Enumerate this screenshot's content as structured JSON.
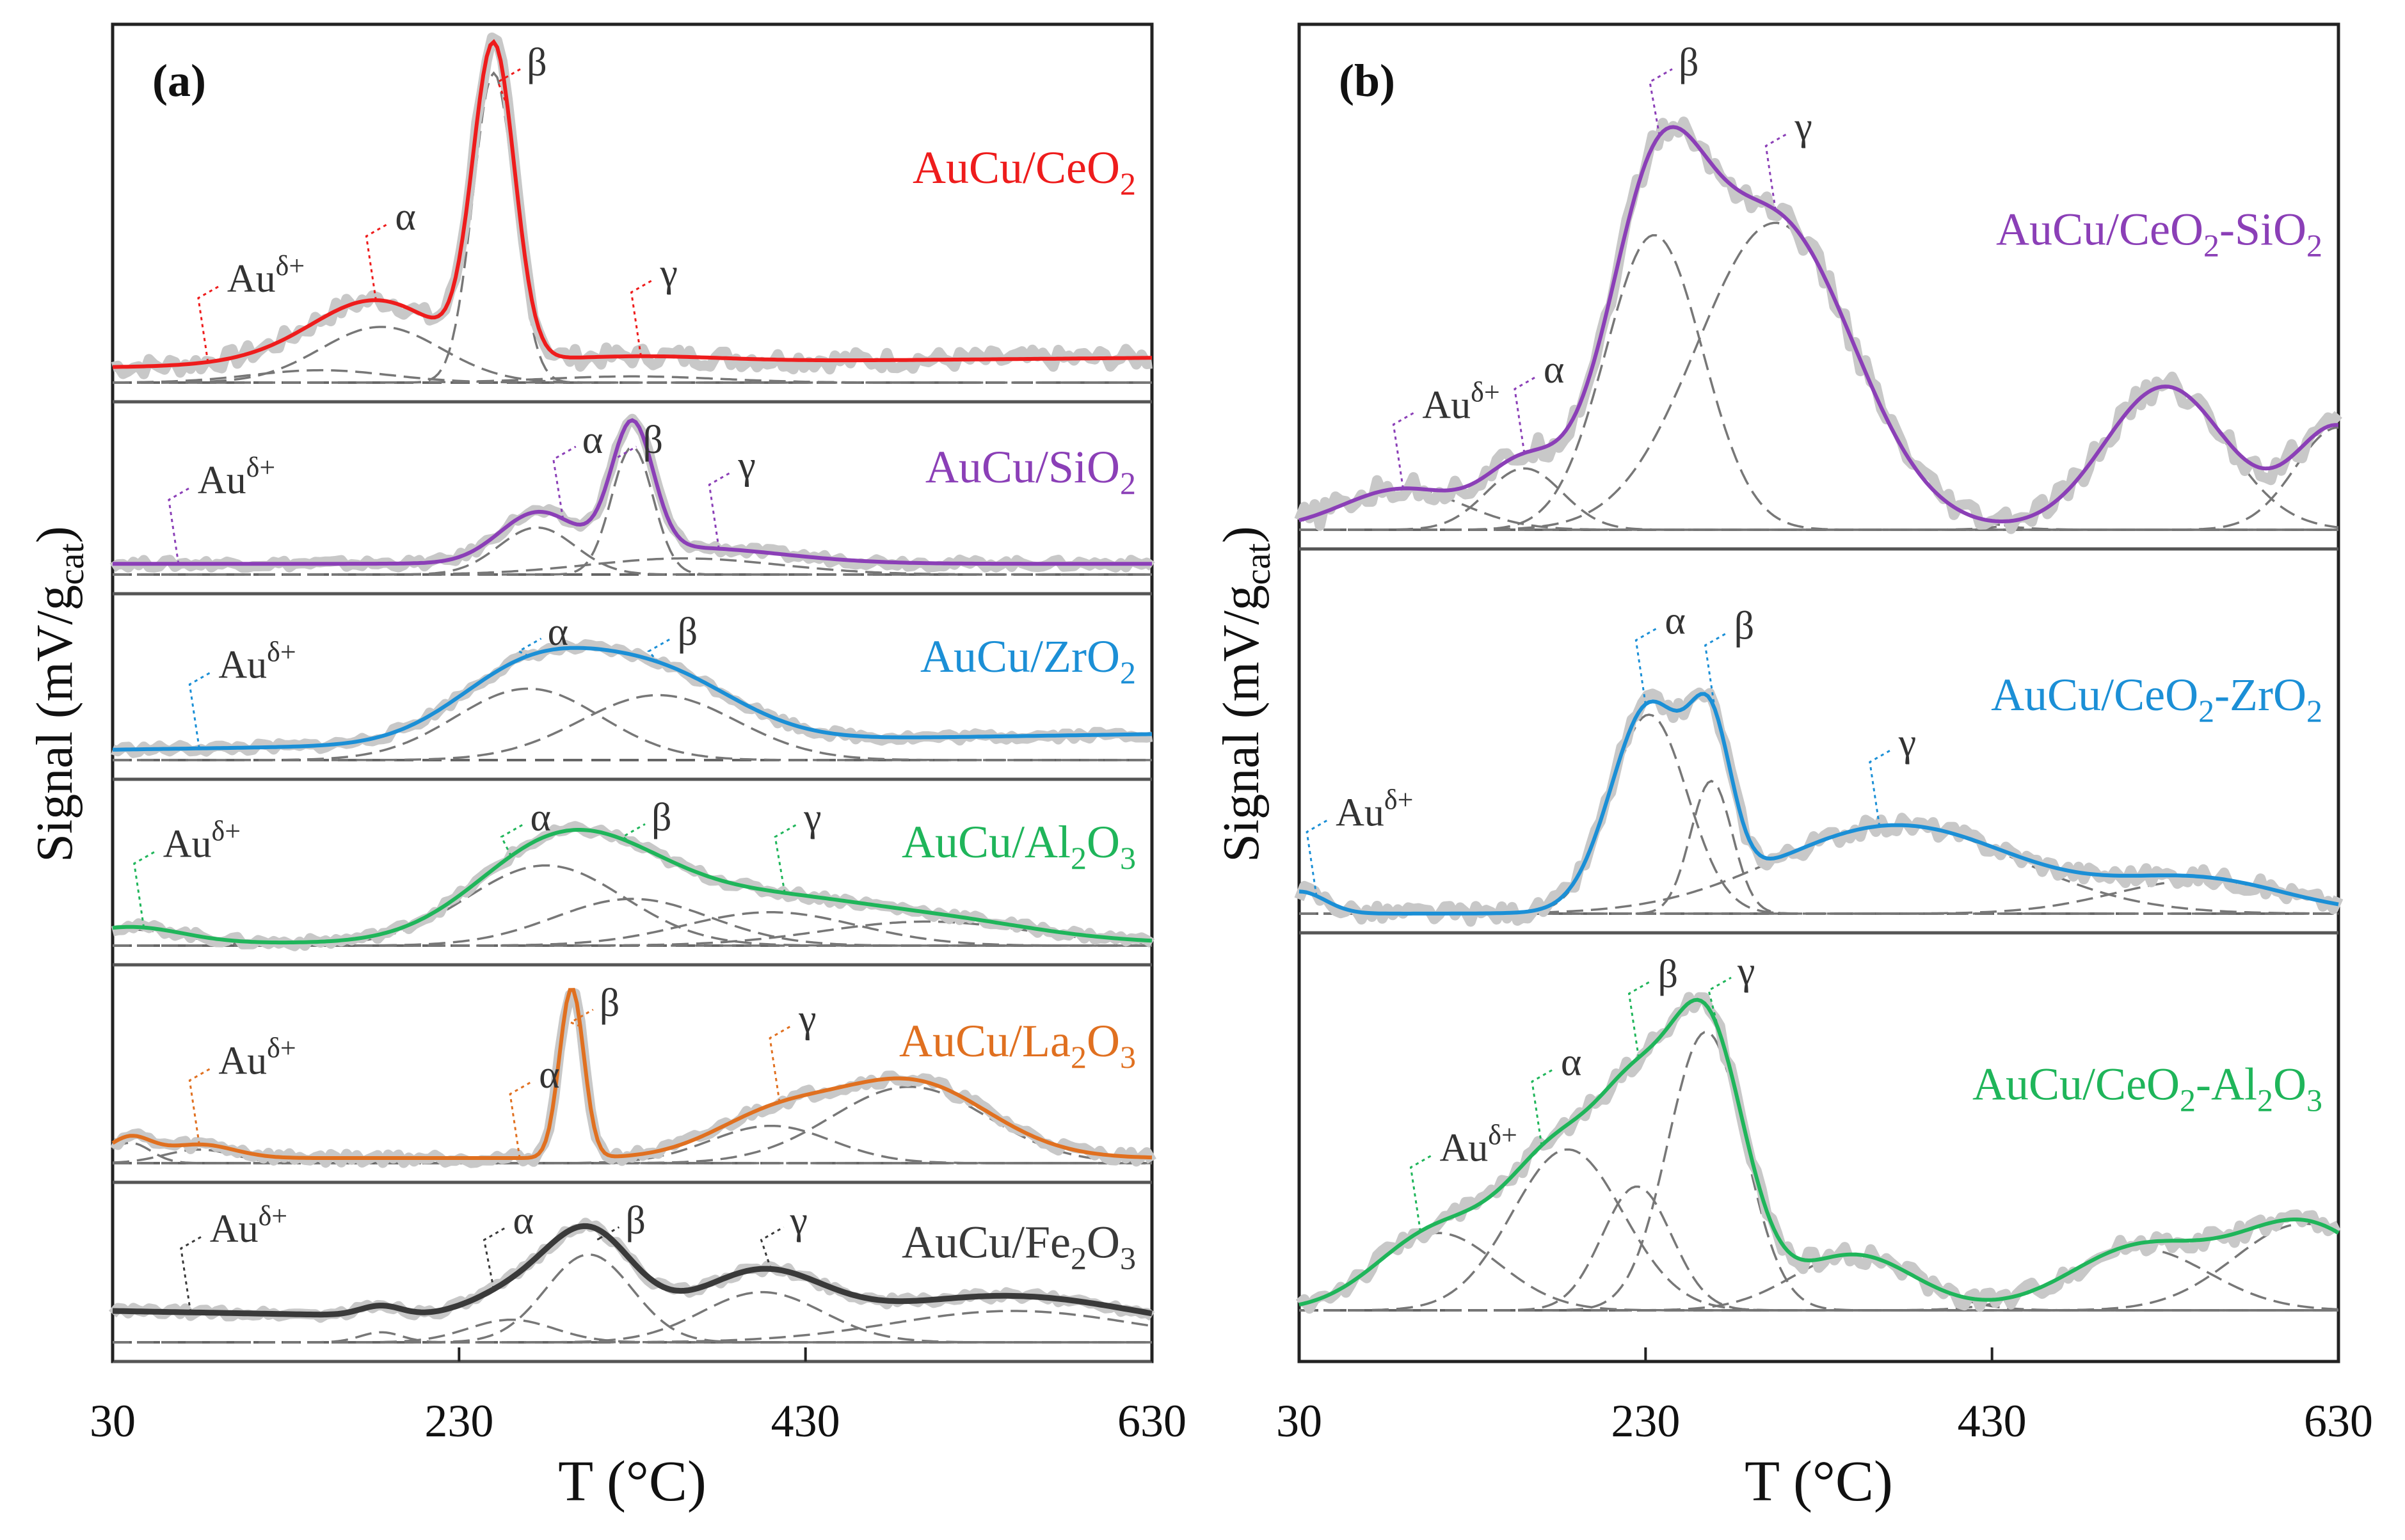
{
  "figure": {
    "y_axis_label": "Signal (mV/g",
    "y_axis_label_sub": "cat",
    "y_axis_label_close": ")"
  },
  "chart_data": [
    {
      "type": "line",
      "panel_label": "(a)",
      "xlabel": "T (°C)",
      "ylabel": "Signal (mV/gcat)",
      "xlim": [
        30,
        630
      ],
      "x_ticks": [
        "30",
        "230",
        "430",
        "630"
      ],
      "series": [
        {
          "name": "AuCu/CeO2",
          "label_main": "AuCu/CeO",
          "label_sub": "2",
          "label_tail": "",
          "color": "#ee1c1c",
          "fit": {
            "base": 0.05,
            "slope": 0.03,
            "peaks": [
              [
                150,
                0.04,
                40
              ],
              [
                185,
                0.18,
                35
              ],
              [
                250,
                1.0,
                12
              ],
              [
                330,
                0.02,
                50
              ]
            ]
          },
          "annotations": [
            [
              "Au",
              "δ+",
              85,
              0.06
            ],
            [
              "α",
              "",
              182,
              0.12
            ],
            [
              "β",
              "",
              258,
              0.8
            ],
            [
              "γ",
              "",
              335,
              0.06
            ]
          ]
        },
        {
          "name": "AuCu/SiO2",
          "label_main": "AuCu/SiO",
          "label_sub": "2",
          "label_tail": "",
          "color": "#8b3fb7",
          "fit": {
            "base": 0.08,
            "slope": 0.0,
            "peaks": [
              [
                275,
                0.35,
                22
              ],
              [
                330,
                0.95,
                12
              ],
              [
                360,
                0.12,
                55
              ]
            ]
          },
          "annotations": [
            [
              "Au",
              "δ+",
              68,
              0.08
            ],
            [
              "α",
              "",
              290,
              0.35
            ],
            [
              "β",
              "",
              325,
              0.8
            ],
            [
              "γ",
              "",
              380,
              0.12
            ]
          ]
        },
        {
          "name": "AuCu/ZrO2",
          "label_main": "AuCu/ZrO",
          "label_sub": "2",
          "label_tail": "",
          "color": "#1b8fd6",
          "fit": {
            "base": 0.08,
            "slope": 0.12,
            "peaks": [
              [
                270,
                0.55,
                42
              ],
              [
                345,
                0.5,
                45
              ]
            ]
          },
          "annotations": [
            [
              "Au",
              "δ+",
              80,
              0.08
            ],
            [
              "α",
              "",
              270,
              0.5
            ],
            [
              "β",
              "",
              345,
              0.45
            ]
          ]
        },
        {
          "name": "AuCu/Al2O3",
          "label_main": "AuCu/Al",
          "label_sub": "2",
          "label_tail": "O",
          "label_sub2": "3",
          "color": "#1fb55a",
          "fit": {
            "base": 0.02,
            "slope": 0.0,
            "peaks": [
              [
                40,
                0.12,
                30
              ],
              [
                280,
                0.6,
                45
              ],
              [
                330,
                0.35,
                45
              ],
              [
                410,
                0.25,
                50
              ],
              [
                500,
                0.18,
                60
              ]
            ]
          },
          "annotations": [
            [
              "Au",
              "δ+",
              48,
              0.1
            ],
            [
              "α",
              "",
              260,
              0.2
            ],
            [
              "β",
              "",
              330,
              0.75
            ],
            [
              "γ",
              "",
              418,
              0.3
            ]
          ]
        },
        {
          "name": "AuCu/La2O3",
          "label_main": "AuCu/La",
          "label_sub": "2",
          "label_tail": "O",
          "label_sub2": "3",
          "color": "#e07020",
          "fit": {
            "base": 0.03,
            "slope": 0.0,
            "peaks": [
              [
                40,
                0.12,
                12
              ],
              [
                80,
                0.08,
                20
              ],
              [
                295,
                1.0,
                7
              ],
              [
                410,
                0.22,
                35
              ],
              [
                490,
                0.45,
                45
              ]
            ]
          },
          "annotations": [
            [
              "Au",
              "δ+",
              80,
              0.12
            ],
            [
              "α",
              "",
              265,
              0.08
            ],
            [
              "β",
              "",
              300,
              0.8
            ],
            [
              "γ",
              "",
              415,
              0.22
            ]
          ]
        },
        {
          "name": "AuCu/Fe2O3",
          "label_main": "AuCu/Fe",
          "label_sub": "2",
          "label_tail": "O",
          "label_sub2": "3",
          "color": "#3a3a3a",
          "fit": {
            "base": 0.25,
            "slope": -0.15,
            "peaks": [
              [
                185,
                0.08,
                12
              ],
              [
                260,
                0.18,
                25
              ],
              [
                305,
                0.7,
                25
              ],
              [
                405,
                0.4,
                35
              ],
              [
                550,
                0.25,
                70
              ]
            ]
          },
          "annotations": [
            [
              "Au",
              "δ+",
              75,
              0.3
            ],
            [
              "α",
              "",
              250,
              0.4
            ],
            [
              "β",
              "",
              315,
              0.8
            ],
            [
              "γ",
              "",
              410,
              0.45
            ]
          ]
        }
      ]
    },
    {
      "type": "line",
      "panel_label": "(b)",
      "xlabel": "T (°C)",
      "ylabel": "Signal (mV/gcat)",
      "xlim": [
        30,
        630
      ],
      "x_ticks": [
        "30",
        "230",
        "430",
        "630"
      ],
      "series": [
        {
          "name": "AuCu/CeO2-SiO2",
          "label_main": "AuCu/CeO",
          "label_sub": "2",
          "label_tail": "-SiO",
          "label_sub2": "2",
          "color": "#8b3fb7",
          "fit": {
            "base": 0.0,
            "slope": 0.0,
            "peaks": [
              [
                90,
                0.1,
                35
              ],
              [
                160,
                0.15,
                22
              ],
              [
                235,
                0.72,
                28
              ],
              [
                305,
                0.75,
                45
              ],
              [
                530,
                0.35,
                35
              ],
              [
                630,
                0.25,
                25
              ]
            ]
          },
          "annotations": [
            [
              "Au",
              "δ+",
              90,
              0.12
            ],
            [
              "α",
              "",
              160,
              0.15
            ],
            [
              "β",
              "",
              238,
              0.6
            ],
            [
              "γ",
              "",
              305,
              0.7
            ]
          ]
        },
        {
          "name": "AuCu/CeO2-ZrO2",
          "label_main": "AuCu/CeO",
          "label_sub": "2",
          "label_tail": "-ZrO",
          "label_sub2": "2",
          "color": "#1b8fd6",
          "fit": {
            "base": 0.0,
            "slope": 0.0,
            "peaks": [
              [
                30,
                0.08,
                15
              ],
              [
                232,
                0.72,
                22
              ],
              [
                268,
                0.48,
                12
              ],
              [
                375,
                0.32,
                70
              ],
              [
                550,
                0.12,
                50
              ]
            ]
          },
          "annotations": [
            [
              "Au",
              "δ+",
              40,
              0.06
            ],
            [
              "α",
              "",
              230,
              0.65
            ],
            [
              "β",
              "",
              270,
              0.45
            ],
            [
              "γ",
              "",
              365,
              0.32
            ]
          ]
        },
        {
          "name": "AuCu/CeO2-Al2O3",
          "label_main": "AuCu/CeO",
          "label_sub": "2",
          "label_tail": "-Al",
          "label_sub2": "2",
          "label_tail2": "O",
          "label_sub3": "3",
          "color": "#1fb55a",
          "fit": {
            "base": 0.0,
            "slope": 0.0,
            "peaks": [
              [
                110,
                0.25,
                35
              ],
              [
                185,
                0.52,
                32
              ],
              [
                225,
                0.4,
                20
              ],
              [
                265,
                0.9,
                22
              ],
              [
                350,
                0.18,
                35
              ],
              [
                515,
                0.2,
                40
              ],
              [
                610,
                0.28,
                40
              ]
            ]
          },
          "annotations": [
            [
              "Au",
              "δ+",
              100,
              0.3
            ],
            [
              "α",
              "",
              170,
              0.5
            ],
            [
              "β",
              "",
              226,
              0.55
            ],
            [
              "γ",
              "",
              272,
              0.85
            ]
          ]
        }
      ]
    }
  ]
}
